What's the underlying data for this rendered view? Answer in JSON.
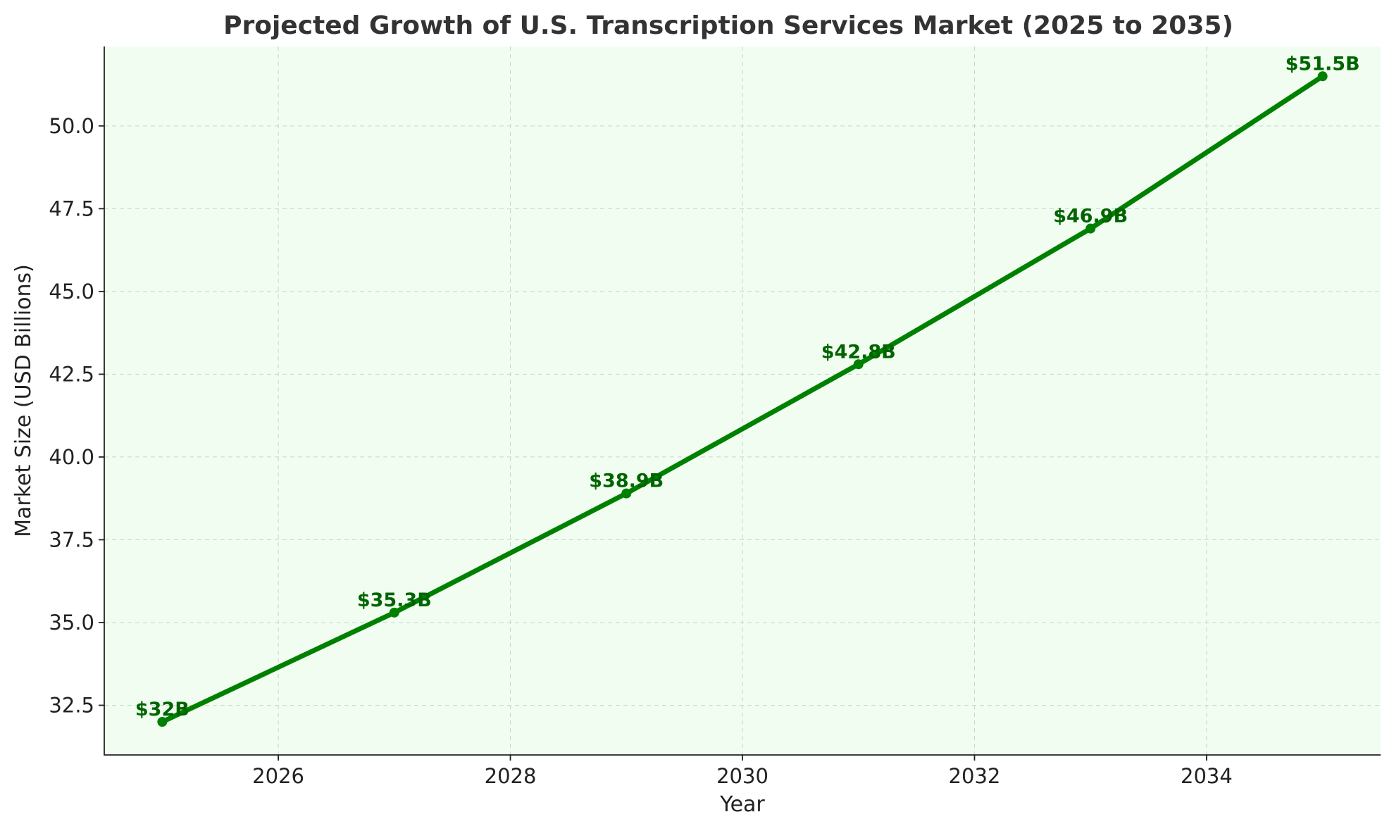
{
  "chart_data": {
    "type": "line",
    "title": "Projected Growth of U.S. Transcription Services Market (2025 to 2035)",
    "xlabel": "Year",
    "ylabel": "Market Size (USD Billions)",
    "xlim": [
      2024.5,
      2035.5
    ],
    "ylim": [
      31.0,
      52.4
    ],
    "xticks": [
      2026,
      2028,
      2030,
      2032,
      2034
    ],
    "yticks": [
      32.5,
      35.0,
      37.5,
      40.0,
      42.5,
      45.0,
      47.5,
      50.0
    ],
    "ytick_labels": [
      "32.5",
      "35.0",
      "37.5",
      "40.0",
      "42.5",
      "45.0",
      "47.5",
      "50.0"
    ],
    "grid": true,
    "series": [
      {
        "x": [
          2025,
          2027,
          2029,
          2031,
          2033,
          2035
        ],
        "values": [
          32.0,
          35.3,
          38.9,
          42.8,
          46.9,
          51.5
        ],
        "labels": [
          "$32B",
          "$35.3B",
          "$38.9B",
          "$42.8B",
          "$46.9B",
          "$51.5B"
        ],
        "color": "#008000",
        "label_color": "#006400",
        "marker": "circle"
      }
    ],
    "background_color": "#f0fdf0"
  }
}
